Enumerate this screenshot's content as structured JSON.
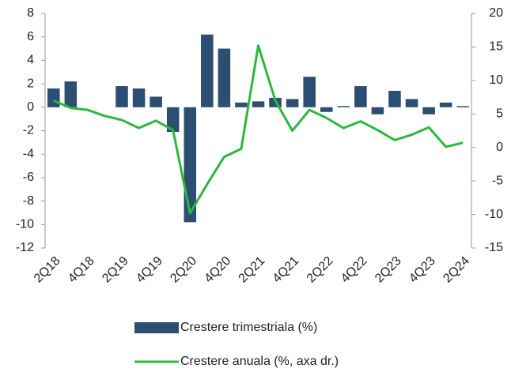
{
  "chart_data": {
    "type": "bar_line",
    "categories": [
      "2Q18",
      null,
      "4Q18",
      null,
      "2Q19",
      null,
      "4Q19",
      null,
      "2Q20",
      null,
      "4Q20",
      null,
      "2Q21",
      null,
      "4Q21",
      null,
      "2Q22",
      null,
      "4Q22",
      null,
      "2Q23",
      null,
      "4Q23",
      null,
      "2Q24"
    ],
    "series": [
      {
        "name": "Crestere trimestriala (%)",
        "color": "#2b4e72",
        "type": "bar",
        "values": [
          1.6,
          2.2,
          0,
          0,
          1.8,
          1.6,
          0.9,
          -2.1,
          -9.8,
          6.2,
          5.0,
          0.4,
          0.5,
          0.8,
          0.7,
          2.6,
          -0.4,
          0.1,
          1.8,
          -0.6,
          1.4,
          0.7,
          -0.6,
          0.4,
          0.1
        ]
      },
      {
        "name": "Crestere anuala (%, axa dr.)",
        "color": "#2cb83c",
        "type": "line",
        "axis": "y2",
        "values": [
          7.0,
          5.9,
          5.6,
          4.7,
          4.1,
          2.9,
          4.0,
          2.6,
          -9.8,
          -5.5,
          -1.4,
          -0.2,
          15.2,
          7.0,
          2.5,
          5.6,
          4.4,
          2.9,
          3.9,
          2.6,
          1.1,
          1.9,
          3.0,
          0.1,
          0.7
        ]
      }
    ],
    "ylim": [
      -12,
      8
    ],
    "yticks": [
      -12,
      -10,
      -8,
      -6,
      -4,
      -2,
      0,
      2,
      4,
      6,
      8
    ],
    "y2lim": [
      -15,
      20
    ],
    "y2ticks": [
      -15,
      -10,
      -5,
      0,
      5,
      10,
      15,
      20
    ]
  }
}
